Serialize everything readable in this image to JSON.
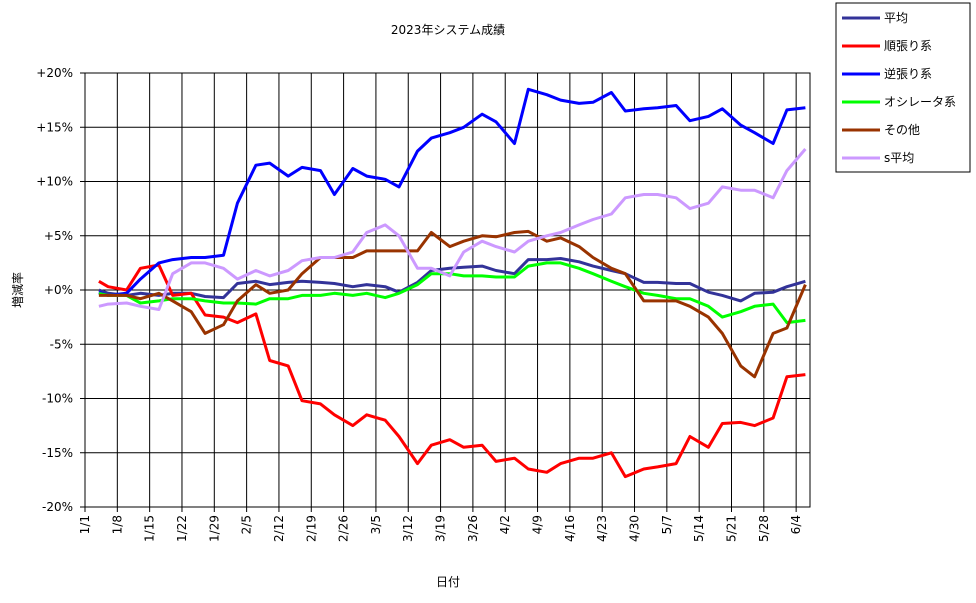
{
  "chart_data": {
    "type": "line",
    "title": "2023年システム成績",
    "x_label": "日付",
    "y_label": "増減率",
    "x": [
      "1/4",
      "1/6",
      "1/10",
      "1/13",
      "1/17",
      "1/20",
      "1/24",
      "1/27",
      "1/31",
      "2/3",
      "2/7",
      "2/10",
      "2/14",
      "2/17",
      "2/21",
      "2/24",
      "2/28",
      "3/3",
      "3/7",
      "3/10",
      "3/14",
      "3/17",
      "3/21",
      "3/24",
      "3/28",
      "3/31",
      "4/4",
      "4/7",
      "4/11",
      "4/14",
      "4/18",
      "4/21",
      "4/25",
      "4/28",
      "5/2",
      "5/5",
      "5/9",
      "5/12",
      "5/16",
      "5/19",
      "5/23",
      "5/26",
      "5/30",
      "6/2",
      "6/6"
    ],
    "xlim": [
      "1/1",
      "6/7"
    ],
    "xticks": [
      "1/1",
      "1/8",
      "1/15",
      "1/22",
      "1/29",
      "2/5",
      "2/12",
      "2/19",
      "2/26",
      "3/5",
      "3/12",
      "3/19",
      "3/26",
      "4/2",
      "4/9",
      "4/16",
      "4/23",
      "4/30",
      "5/7",
      "5/14",
      "5/21",
      "5/28",
      "6/4"
    ],
    "ylim": [
      -20,
      20
    ],
    "yticks": [
      {
        "value": -20,
        "label": "-20%"
      },
      {
        "value": -15,
        "label": "-15%"
      },
      {
        "value": -10,
        "label": "-10%"
      },
      {
        "value": -5,
        "label": "-5%"
      },
      {
        "value": 0,
        "label": "+0%"
      },
      {
        "value": 5,
        "label": "+5%"
      },
      {
        "value": 10,
        "label": "+10%"
      },
      {
        "value": 15,
        "label": "+15%"
      },
      {
        "value": 20,
        "label": "+20%"
      }
    ],
    "grid": true,
    "legend": "outside-top-right",
    "series": [
      {
        "name": "平均",
        "color": "#333399",
        "values": [
          0,
          -0.3,
          -0.5,
          -0.3,
          -0.5,
          -0.3,
          -0.3,
          -0.6,
          -0.7,
          0.6,
          0.8,
          0.5,
          0.7,
          0.8,
          0.7,
          0.6,
          0.3,
          0.5,
          0.3,
          -0.2,
          0.7,
          1.8,
          2.0,
          2.1,
          2.2,
          1.8,
          1.5,
          2.8,
          2.8,
          2.9,
          2.6,
          2.2,
          1.8,
          1.5,
          0.7,
          0.7,
          0.6,
          0.6,
          -0.2,
          -0.5,
          -1.0,
          -0.3,
          -0.2,
          0.3,
          0.8
        ]
      },
      {
        "name": "順張り系",
        "color": "#ff0000",
        "values": [
          0.8,
          0.3,
          0,
          2.0,
          2.3,
          -0.5,
          -0.3,
          -2.3,
          -2.5,
          -3.0,
          -2.2,
          -6.5,
          -7.0,
          -10.2,
          -10.5,
          -11.5,
          -12.5,
          -11.5,
          -12.0,
          -13.5,
          -16.0,
          -14.3,
          -13.8,
          -14.5,
          -14.3,
          -15.8,
          -15.5,
          -16.5,
          -16.8,
          -16.0,
          -15.5,
          -15.5,
          -15.0,
          -17.2,
          -16.5,
          -16.3,
          -16.0,
          -13.5,
          -14.5,
          -12.3,
          -12.2,
          -12.5,
          -11.8,
          -8.0,
          -7.8
        ]
      },
      {
        "name": "逆張り系",
        "color": "#0000ff",
        "values": [
          -0.2,
          -0.5,
          -0.3,
          1.0,
          2.5,
          2.8,
          3.0,
          3.0,
          3.2,
          8.0,
          11.5,
          11.7,
          10.5,
          11.3,
          11.0,
          8.8,
          11.2,
          10.5,
          10.2,
          9.5,
          12.8,
          14.0,
          14.5,
          15.0,
          16.2,
          15.5,
          13.5,
          18.5,
          18.0,
          17.5,
          17.2,
          17.3,
          18.2,
          16.5,
          16.7,
          16.8,
          17.0,
          15.6,
          16.0,
          16.7,
          15.2,
          14.5,
          13.5,
          16.6,
          16.8
        ]
      },
      {
        "name": "オシレータ系",
        "color": "#00ff00",
        "values": [
          -0.3,
          -0.5,
          -0.5,
          -1.2,
          -1.0,
          -0.8,
          -0.8,
          -1.0,
          -1.2,
          -1.2,
          -1.3,
          -0.8,
          -0.8,
          -0.5,
          -0.5,
          -0.3,
          -0.5,
          -0.3,
          -0.7,
          -0.3,
          0.5,
          1.5,
          1.5,
          1.3,
          1.3,
          1.2,
          1.2,
          2.2,
          2.5,
          2.5,
          2.0,
          1.5,
          0.8,
          0.3,
          -0.3,
          -0.5,
          -0.8,
          -0.8,
          -1.5,
          -2.5,
          -2.0,
          -1.5,
          -1.3,
          -3.0,
          -2.8
        ]
      },
      {
        "name": "その他",
        "color": "#993300",
        "values": [
          -0.5,
          -0.5,
          -0.5,
          -0.8,
          -0.3,
          -1.0,
          -2.0,
          -4.0,
          -3.2,
          -1.0,
          0.5,
          -0.3,
          0,
          1.5,
          3.0,
          3.0,
          3.0,
          3.6,
          3.6,
          3.6,
          3.6,
          5.3,
          4.0,
          4.5,
          5.0,
          4.9,
          5.3,
          5.4,
          4.5,
          4.8,
          4.0,
          3.0,
          2.0,
          1.5,
          -1.0,
          -1.0,
          -1.0,
          -1.5,
          -2.5,
          -4.0,
          -7.0,
          -8.0,
          -4.0,
          -3.5,
          0.5
        ]
      },
      {
        "name": "s平均",
        "color": "#cc99ff",
        "values": [
          -1.5,
          -1.3,
          -1.2,
          -1.5,
          -1.8,
          1.5,
          2.5,
          2.5,
          2.0,
          1.0,
          1.8,
          1.3,
          1.8,
          2.7,
          3.0,
          3.0,
          3.5,
          5.3,
          6.0,
          5.0,
          2.0,
          2.0,
          1.3,
          3.5,
          4.5,
          4.0,
          3.5,
          4.5,
          5.0,
          5.3,
          6.0,
          6.5,
          7.0,
          8.5,
          8.8,
          8.8,
          8.5,
          7.5,
          8.0,
          9.5,
          9.2,
          9.2,
          8.5,
          11.0,
          13.0
        ]
      }
    ]
  }
}
